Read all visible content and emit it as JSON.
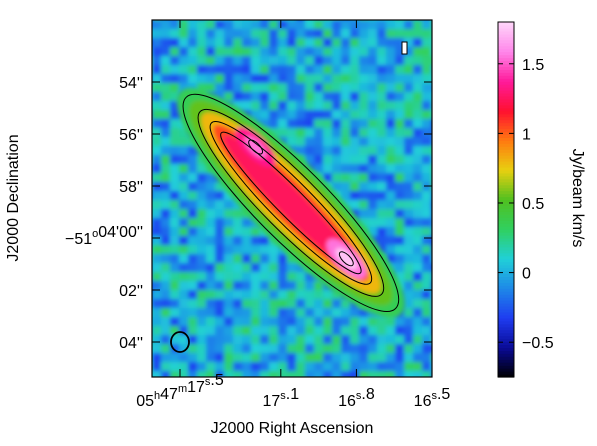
{
  "chart_data": {
    "type": "heatmap",
    "xlabel": "J2000 Right Ascension",
    "ylabel": "J2000 Declination",
    "x_ticks": [
      {
        "label": [
          "05",
          "h",
          "47",
          "m",
          "17",
          "s",
          ".5"
        ],
        "ra_sec": 17.5
      },
      {
        "label": [
          "17",
          "s",
          ".1"
        ],
        "ra_sec": 17.1
      },
      {
        "label": [
          "16",
          "s",
          ".8"
        ],
        "ra_sec": 16.8
      },
      {
        "label": [
          "16",
          "s",
          ".5"
        ],
        "ra_sec": 16.5
      }
    ],
    "y_ticks": [
      {
        "label": "54''",
        "dec_arcsec": 54
      },
      {
        "label": "56''",
        "dec_arcsec": 56
      },
      {
        "label": "58''",
        "dec_arcsec": 58
      },
      {
        "label": [
          "−51",
          "o",
          "04'00''"
        ],
        "dec_arcsec": 60
      },
      {
        "label": "02''",
        "dec_arcsec": 62
      },
      {
        "label": "04''",
        "dec_arcsec": 64
      }
    ],
    "colorbar": {
      "label": "Jy/beam km/s",
      "min": -0.75,
      "max": 1.8,
      "ticks": [
        {
          "label": "1.5",
          "value": 1.5
        },
        {
          "label": "1",
          "value": 1.0
        },
        {
          "label": "0.5",
          "value": 0.5
        },
        {
          "label": "0",
          "value": 0.0
        },
        {
          "label": "−0.5",
          "value": -0.5
        }
      ],
      "colormap": [
        "#000000",
        "#0a0a96",
        "#1f3cf0",
        "#1e88e8",
        "#20d0d8",
        "#30d060",
        "#50c020",
        "#e8d010",
        "#ff7a10",
        "#ff1030",
        "#ff1a9a",
        "#ff86ea",
        "#ffd6fa"
      ]
    },
    "emission_ridge": {
      "ra_range_sec": [
        17.28,
        16.84
      ],
      "dec_range_arcsec": [
        56.5,
        60.8
      ],
      "peak_value": 1.75,
      "peaks": [
        {
          "ra_sec": 17.2,
          "dec_arcsec": 56.5,
          "value": 1.55
        },
        {
          "ra_sec": 16.84,
          "dec_arcsec": 60.8,
          "value": 1.75
        }
      ]
    },
    "contour_levels": [
      0.3,
      0.6,
      0.9,
      1.2,
      1.5
    ],
    "beam": {
      "ra_sec": 17.45,
      "dec_arcsec": 64,
      "shape": "circle"
    },
    "grid": false
  }
}
